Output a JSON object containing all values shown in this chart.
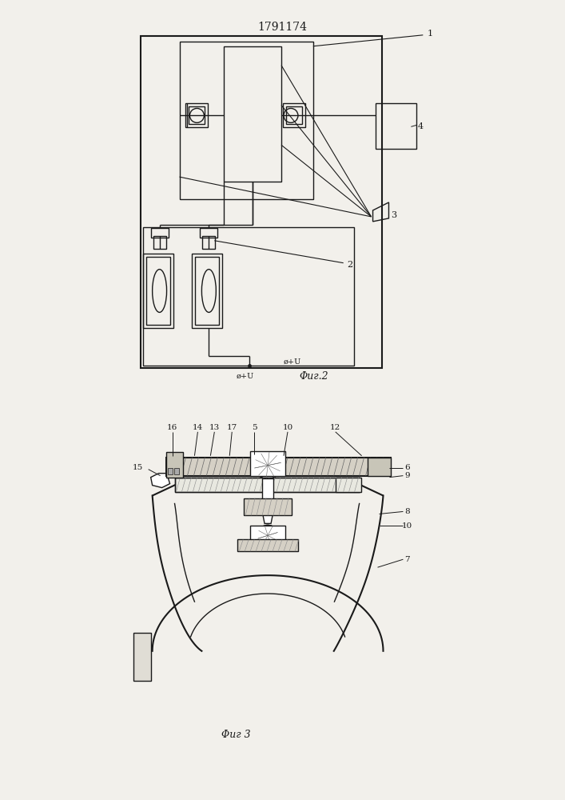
{
  "title": "1791174",
  "bg_color": "#f2f0eb",
  "line_color": "#1a1a1a",
  "fig2_label": "Φиг.2",
  "fig3_label": "Φиг 3",
  "phi_u_label": "ø+U"
}
